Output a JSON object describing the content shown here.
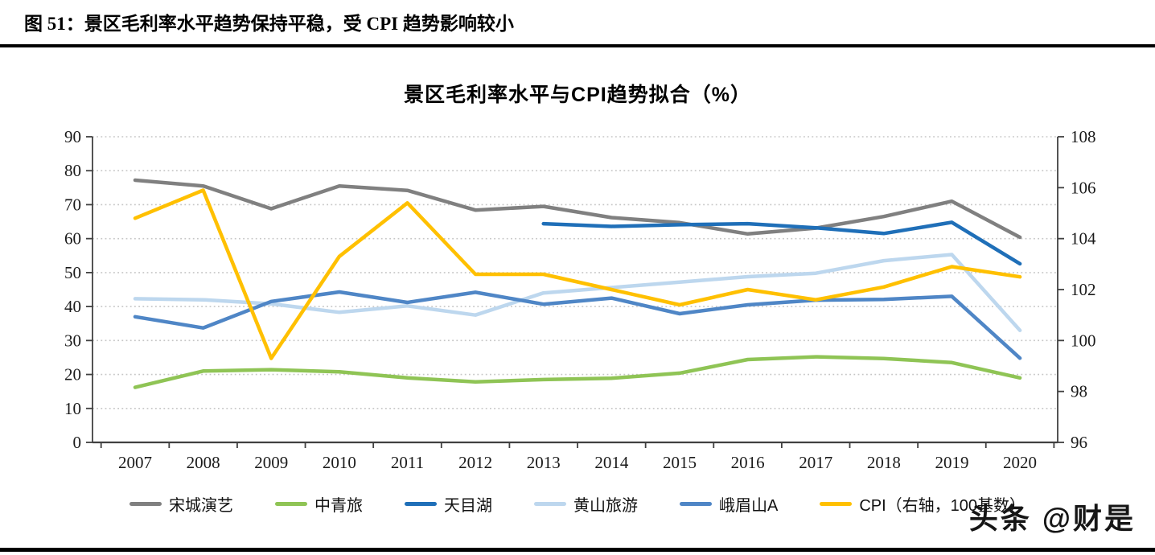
{
  "page": {
    "figure_caption": "图 51：景区毛利率水平趋势保持平稳，受 CPI 趋势影响较小",
    "watermark": "头条 @财是"
  },
  "chart_data": {
    "type": "line",
    "title": "景区毛利率水平与CPI趋势拟合（%）",
    "x": [
      "2007",
      "2008",
      "2009",
      "2010",
      "2011",
      "2012",
      "2013",
      "2014",
      "2015",
      "2016",
      "2017",
      "2018",
      "2019",
      "2020"
    ],
    "series": [
      {
        "name": "宋城演艺",
        "color": "#808080",
        "axis": "left",
        "values": [
          77.2,
          75.5,
          68.8,
          75.5,
          74.2,
          68.4,
          69.5,
          66.2,
          64.7,
          61.4,
          63.1,
          66.5,
          71.0,
          60.4
        ]
      },
      {
        "name": "中青旅",
        "color": "#8FC455",
        "axis": "left",
        "values": [
          16.2,
          21.0,
          21.4,
          20.8,
          19.0,
          17.8,
          18.5,
          18.9,
          20.4,
          24.4,
          25.2,
          24.7,
          23.5,
          19.0
        ]
      },
      {
        "name": "天目湖",
        "color": "#1F6FB8",
        "axis": "left",
        "values": [
          null,
          null,
          null,
          null,
          null,
          null,
          64.4,
          63.6,
          64.1,
          64.4,
          63.2,
          61.5,
          64.8,
          52.6
        ]
      },
      {
        "name": "黄山旅游",
        "color": "#BDD7EE",
        "axis": "left",
        "values": [
          42.3,
          42.0,
          40.8,
          38.3,
          40.2,
          37.5,
          44.0,
          45.6,
          47.2,
          48.8,
          49.8,
          53.5,
          55.3,
          33.0
        ]
      },
      {
        "name": "峨眉山A",
        "color": "#4F86C6",
        "axis": "left",
        "values": [
          37.0,
          33.7,
          41.5,
          44.3,
          41.2,
          44.2,
          40.7,
          42.5,
          37.9,
          40.5,
          41.9,
          42.1,
          43.0,
          24.8
        ]
      },
      {
        "name": "CPI（右轴，100基数）",
        "color": "#FFC000",
        "axis": "right",
        "values": [
          104.8,
          105.9,
          99.3,
          103.3,
          105.4,
          102.6,
          102.6,
          102.0,
          101.4,
          102.0,
          101.6,
          102.1,
          102.9,
          102.5
        ]
      }
    ],
    "left_axis": {
      "min": 0,
      "max": 90,
      "step": 10,
      "ticks": [
        "0",
        "10",
        "20",
        "30",
        "40",
        "50",
        "60",
        "70",
        "80",
        "90"
      ]
    },
    "right_axis": {
      "min": 96,
      "max": 108,
      "step": 2,
      "ticks": [
        "96",
        "98",
        "100",
        "102",
        "104",
        "106",
        "108"
      ]
    },
    "xlabel": "",
    "ylabel": "",
    "grid": "horizontal-dotted",
    "legend_position": "bottom",
    "draw_order": [
      0,
      1,
      3,
      4,
      2,
      5
    ],
    "colors": {
      "grid": "#c6c6c6",
      "axis": "#404040",
      "tick_text": "#1a1a1a"
    }
  }
}
